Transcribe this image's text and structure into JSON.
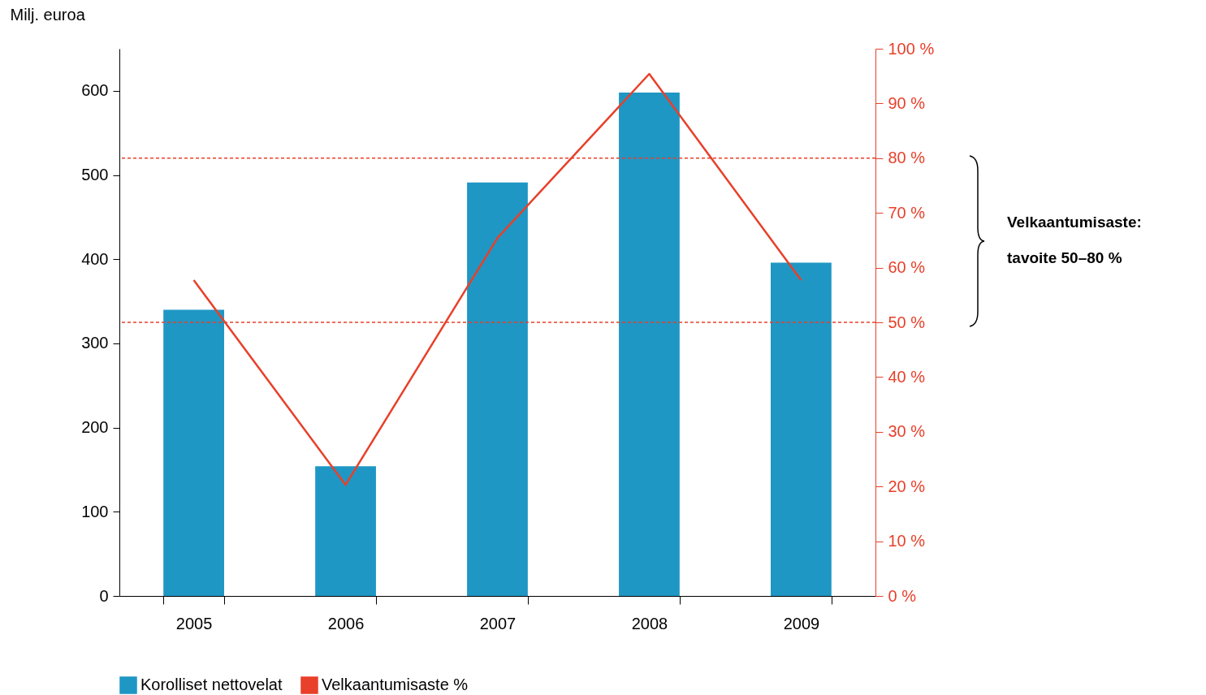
{
  "chart_data": {
    "type": "bar",
    "ylabel": "Milj. euroa",
    "categories": [
      "2005",
      "2006",
      "2007",
      "2008",
      "2009"
    ],
    "series": [
      {
        "name": "Korolliset nettovelat",
        "color": "#1f97c4",
        "values": [
          340,
          154,
          491,
          598,
          396
        ]
      },
      {
        "name": "Velkaantumisaste %",
        "type": "line",
        "axis": "y2",
        "color": "#e8402a",
        "values": [
          57.7,
          20.3,
          65.4,
          95.4,
          57.7
        ]
      }
    ],
    "ylim": [
      0,
      650
    ],
    "yticks": [
      0,
      100,
      200,
      300,
      400,
      500,
      600
    ],
    "y2lim": [
      0,
      100
    ],
    "y2ticks": [
      {
        "value": 0,
        "label": "0 %"
      },
      {
        "value": 10,
        "label": "10 %"
      },
      {
        "value": 20,
        "label": "20 %"
      },
      {
        "value": 30,
        "label": "30 %"
      },
      {
        "value": 40,
        "label": "40 %"
      },
      {
        "value": 50,
        "label": "50 %"
      },
      {
        "value": 60,
        "label": "60 %"
      },
      {
        "value": 70,
        "label": "70 %"
      },
      {
        "value": 80,
        "label": "80 %"
      },
      {
        "value": 90,
        "label": "90 %"
      },
      {
        "value": 100,
        "label": "100 %"
      }
    ],
    "ref_lines": [
      {
        "axis": "y2",
        "value": 80,
        "color": "#e8402a",
        "line_style": "dashed"
      },
      {
        "axis": "y2",
        "value": 50,
        "color": "#e8402a",
        "line_style": "dashed"
      }
    ],
    "annotations": [
      "Velkaantumisaste:\ntavoite 50–80 %"
    ],
    "legend": "bottom"
  }
}
